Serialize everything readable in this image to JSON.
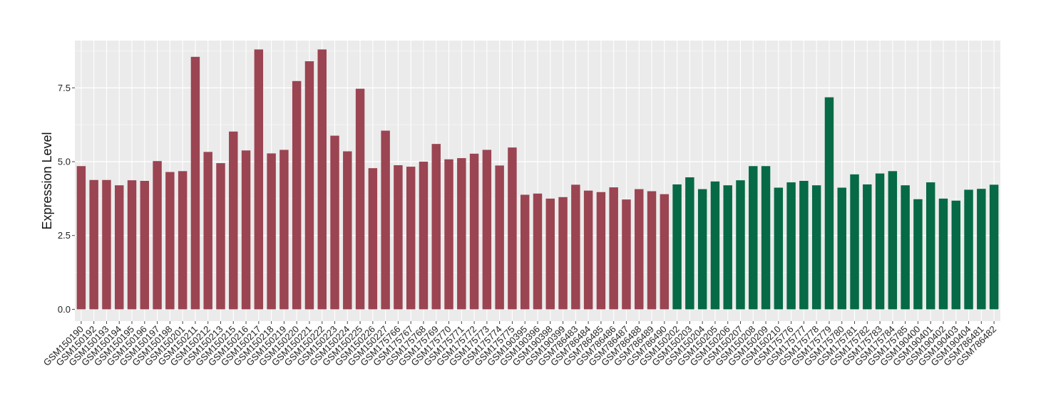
{
  "chart_data": {
    "type": "bar",
    "ylabel": "Expression Level",
    "xlabel": "",
    "ylim": [
      -0.4,
      9.1
    ],
    "yticks": [
      0.0,
      2.5,
      5.0,
      7.5
    ],
    "ytick_labels": [
      "0.0",
      "2.5",
      "5.0",
      "7.5"
    ],
    "grid": true,
    "colors": {
      "group1": "#9b4452",
      "group2": "#056a45",
      "panel": "#ebebeb",
      "grid": "#ffffff"
    },
    "categories": [
      "GSM150190",
      "GSM150192",
      "GSM150193",
      "GSM150194",
      "GSM150195",
      "GSM150196",
      "GSM150197",
      "GSM150198",
      "GSM150201",
      "GSM150211",
      "GSM150212",
      "GSM150213",
      "GSM150215",
      "GSM150216",
      "GSM150217",
      "GSM150218",
      "GSM150219",
      "GSM150220",
      "GSM150221",
      "GSM150222",
      "GSM150223",
      "GSM150224",
      "GSM150225",
      "GSM150226",
      "GSM150227",
      "GSM175766",
      "GSM175767",
      "GSM175768",
      "GSM175769",
      "GSM175770",
      "GSM175771",
      "GSM175772",
      "GSM175773",
      "GSM175774",
      "GSM175775",
      "GSM190395",
      "GSM190396",
      "GSM190398",
      "GSM190399",
      "GSM786483",
      "GSM786484",
      "GSM786485",
      "GSM786486",
      "GSM786487",
      "GSM786488",
      "GSM786489",
      "GSM786490",
      "GSM150202",
      "GSM150203",
      "GSM150204",
      "GSM150205",
      "GSM150206",
      "GSM150207",
      "GSM150208",
      "GSM150209",
      "GSM150210",
      "GSM175776",
      "GSM175777",
      "GSM175778",
      "GSM175779",
      "GSM175780",
      "GSM175781",
      "GSM175782",
      "GSM175783",
      "GSM175784",
      "GSM175785",
      "GSM190400",
      "GSM190401",
      "GSM190402",
      "GSM190403",
      "GSM190404",
      "GSM786481",
      "GSM786482"
    ],
    "values": [
      4.85,
      4.38,
      4.38,
      4.2,
      4.37,
      4.35,
      5.02,
      4.65,
      4.68,
      8.55,
      5.33,
      4.95,
      6.02,
      5.38,
      8.8,
      5.28,
      5.4,
      7.73,
      8.4,
      8.8,
      5.88,
      5.35,
      7.47,
      4.78,
      6.05,
      4.88,
      4.83,
      5.0,
      5.6,
      5.08,
      5.12,
      5.27,
      5.4,
      4.87,
      5.48,
      3.88,
      3.92,
      3.75,
      3.8,
      4.22,
      4.02,
      3.97,
      4.13,
      3.72,
      4.07,
      4.0,
      3.9,
      4.23,
      4.47,
      4.07,
      4.33,
      4.2,
      4.37,
      4.85,
      4.85,
      4.12,
      4.3,
      4.35,
      4.2,
      7.18,
      4.12,
      4.57,
      4.23,
      4.6,
      4.68,
      4.2,
      3.73,
      4.3,
      3.75,
      3.68,
      4.05,
      4.08,
      4.22
    ],
    "groups": [
      1,
      1,
      1,
      1,
      1,
      1,
      1,
      1,
      1,
      1,
      1,
      1,
      1,
      1,
      1,
      1,
      1,
      1,
      1,
      1,
      1,
      1,
      1,
      1,
      1,
      1,
      1,
      1,
      1,
      1,
      1,
      1,
      1,
      1,
      1,
      1,
      1,
      1,
      1,
      1,
      1,
      1,
      1,
      1,
      1,
      1,
      1,
      2,
      2,
      2,
      2,
      2,
      2,
      2,
      2,
      2,
      2,
      2,
      2,
      2,
      2,
      2,
      2,
      2,
      2,
      2,
      2,
      2,
      2,
      2,
      2,
      2,
      2
    ]
  }
}
